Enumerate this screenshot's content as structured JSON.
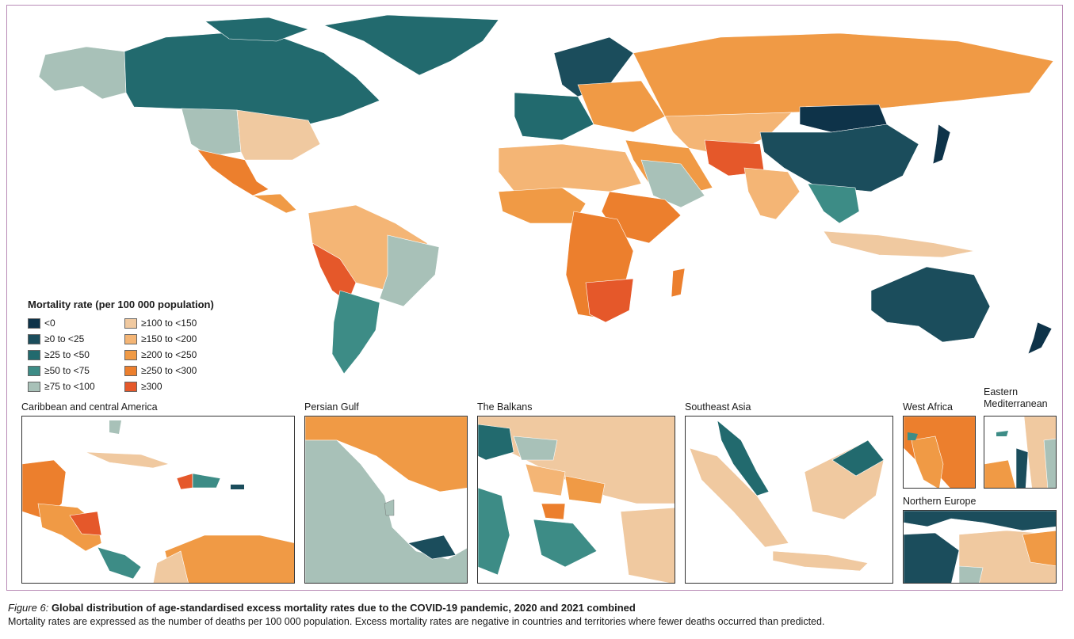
{
  "legend": {
    "title": "Mortality rate (per 100 000 population)",
    "items": [
      {
        "label": "<0",
        "color": "#0e3349"
      },
      {
        "label": "≥0 to <25",
        "color": "#1b4d5c"
      },
      {
        "label": "≥25 to <50",
        "color": "#226a6e"
      },
      {
        "label": "≥50 to <75",
        "color": "#3d8c86"
      },
      {
        "label": "≥75 to <100",
        "color": "#a8c1b8"
      },
      {
        "label": "≥100 to <150",
        "color": "#f0c9a0"
      },
      {
        "label": "≥150 to <200",
        "color": "#f4b575"
      },
      {
        "label": "≥200 to <250",
        "color": "#f09a45"
      },
      {
        "label": "≥250 to <300",
        "color": "#ec7f2d"
      },
      {
        "label": "≥300",
        "color": "#e5582a"
      }
    ]
  },
  "insets": {
    "caribbean": "Caribbean and central America",
    "persian_gulf": "Persian Gulf",
    "balkans": "The Balkans",
    "southeast_asia": "Southeast Asia",
    "west_africa": "West Africa",
    "eastern_med": "Eastern Mediterranean",
    "northern_europe": "Northern Europe"
  },
  "caption": {
    "figure_label": "Figure 6:",
    "title": "Global distribution of age-standardised excess mortality rates due to the COVID-19 pandemic, 2020 and 2021 combined",
    "text": "Mortality rates are expressed as the number of deaths per 100 000 population. Excess mortality rates are negative in countries and territories where fewer deaths occurred than predicted."
  }
}
